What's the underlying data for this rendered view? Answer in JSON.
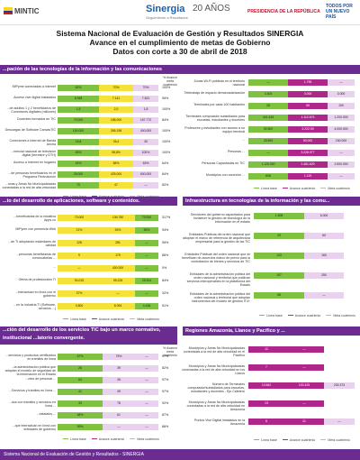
{
  "header": {
    "mintic": "MINTIC",
    "sinergia": "Sinergia",
    "sinergia_sub": "Seguimiento a Resultados",
    "anos": "20 AÑOS",
    "presidencia": "PRESIDENCIA DE LA REPÚBLICA",
    "todos": "TODOS POR UN NUEVO PAÍS"
  },
  "title": {
    "line1": "Sistema Nacional de Evaluación de Gestión y Resultados SINERGIA",
    "line2": "Avance en el cumplimiento de metas de Gobierno",
    "line3": "Datos con corte a 30 de abril de 2018"
  },
  "colors": {
    "accent": "#6a2c91",
    "linea_base": "#7fc241",
    "avance": "#f4e13a",
    "meta": "#b0278c"
  },
  "legend": {
    "base": "Línea base",
    "avance": "Avance cuatrienio",
    "meta": "Meta cuatrienio"
  },
  "col_header": "% Avance meta cuatrienio",
  "sections": {
    "s1": "...pación de las tecnologías de la información y las comunicaciones",
    "s2": "...to del desarrollo de aplicaciones, software y contenidos.",
    "s3": "Infraestructura en tecnologías de la información y las comu...",
    "s4": "...ción del desarrollo de los servicios TIC bajo un marco normativo, institucional ...latorio convergente.",
    "s5": "Regiones Amazonía, Llanos y Pacífico y ..."
  },
  "left1": [
    {
      "label": "MiPyme conectadas a internet",
      "v": [
        "62%",
        "70%",
        "70%"
      ],
      "pct": "100%"
    },
    {
      "label": "Acceso vive digital instalados",
      "v": [
        "6.948",
        "7.141",
        "7.621"
      ],
      "pct": "95%"
    },
    {
      "label": "...de adultos 1 y 2 beneficiarios de Conexiones digitales (millones)",
      "v": [
        "1,5",
        "2,0",
        "1,8"
      ],
      "pct": "100%"
    },
    {
      "label": "Docentes formados en TIC",
      "v": [
        "70.000",
        "188.000",
        "157.772"
      ],
      "pct": "84%"
    },
    {
      "label": "Descargas de Software CanvasTIC",
      "v": [
        "100.000",
        "265.198",
        "400.000"
      ],
      "pct": "100%"
    },
    {
      "label": "Conexiones a Internet de Banda Ancha",
      "v": [
        "15,8",
        "26,4",
        "30"
      ],
      "pct": "100%"
    },
    {
      "label": "...mercial nacional de televisión digital (terrestre y DTH)",
      "v": [
        "63%",
        "98,8%",
        "100%"
      ],
      "pct": "100%"
    },
    {
      "label": "Acceso a Internet en hogares",
      "v": [
        "44%",
        "58%",
        "63%"
      ],
      "pct": "64%"
    },
    {
      "label": "...de personas beneficiarios en el Programa Redvolución",
      "v": [
        "25.000",
        "425.000",
        "600.000"
      ],
      "pct": "84%"
    },
    {
      "label": "...onas y Áreas No Municipalizadas conectadas a la red de alta velocidad",
      "v": [
        "70",
        "47",
        "—"
      ],
      "pct": "82%"
    }
  ],
  "right1": [
    {
      "label": "Zonas Wi-Fi públicas en el territorio nacional",
      "v": [
        "—",
        "1.795",
        "—"
      ],
      "pct": ""
    },
    {
      "label": "Teletrabajo de espacio demarcadarización",
      "v": [
        "3.303",
        "3.000",
        "3.000"
      ],
      "pct": ""
    },
    {
      "label": "Terminales por cada 100 habitantes",
      "v": [
        "28",
        "55",
        "100"
      ],
      "pct": ""
    },
    {
      "label": "Terminales computador subsidiados para escuelas, estudiantes y docentes",
      "v": [
        "441.445",
        "1.112.673",
        "1.200.000"
      ],
      "pct": ""
    },
    {
      "label": "Profesores y estudiantes con acceso a un equipo terminal",
      "v": [
        "92.502",
        "3.222.90",
        "4.000.000"
      ],
      "pct": ""
    },
    {
      "label": "...",
      "v": [
        "33.553",
        "50.000",
        "150.000"
      ],
      "pct": ""
    },
    {
      "label": "Personas ...",
      "v": [
        "—",
        "3.228.077",
        "—"
      ],
      "pct": ""
    },
    {
      "label": "Personas Capacitadas en TIC",
      "v": [
        "1.125.000",
        "2.481.629",
        "2.500.000"
      ],
      "pct": ""
    },
    {
      "label": "Municipios con conexión ...",
      "v": [
        "808",
        "1.119",
        "—"
      ],
      "pct": ""
    }
  ],
  "left2": [
    {
      "label": "...beneficiarias de la iniciativa Apps.co",
      "v": [
        "70.000",
        "136.780",
        "70.000"
      ],
      "pct": "317%"
    },
    {
      "label": "MiPyme con presencia Web",
      "v": [
        "21%",
        "53%",
        "56%"
      ],
      "pct": "94%"
    },
    {
      "label": "...de TI adoptando estándares de calidad",
      "v": [
        "128",
        "281",
        "—"
      ],
      "pct": "95%"
    },
    {
      "label": "...personas beneficiarias de convocatorias ...",
      "v": [
        "9",
        "179",
        "—"
      ],
      "pct": "86%"
    },
    {
      "label": "...",
      "v": [
        "—",
        "400.000",
        "—"
      ],
      "pct": "0%"
    },
    {
      "label": "Oferta de profesionales TI",
      "v": [
        "94.015",
        "95.228",
        "25.924"
      ],
      "pct": "84%"
    },
    {
      "label": "...interactúan en línea con el gobierno",
      "v": [
        "37%",
        "—",
        "—"
      ],
      "pct": "32%"
    },
    {
      "label": "...en la industria TI (Software, servicios ...)",
      "v": [
        "3.800",
        "8.094",
        "4.436"
      ],
      "pct": "51%"
    }
  ],
  "right2": [
    {
      "label": "Servidores del gobierno capacitados para fortalecer la gestión de tecnología de la información en el estado",
      "v": [
        "1.508",
        "6.000"
      ],
      "pct": ""
    },
    {
      "label": "Entidades Públicas del orden nacional que adoptan el marco de referencia de arquitectura empresarial para la gestión de las TIC",
      "v": [
        "33",
        "60"
      ],
      "pct": ""
    },
    {
      "label": "Entidades Públicas del orden nacional que se benefician de acuerdos marco de precio para la contratación de bienes y servicios de TIC",
      "v": [
        "133",
        "160"
      ],
      "pct": ""
    },
    {
      "label": "Entidades de la administración pública del orden nacional y territorial que publican servicios interoperables en la plataforma del Estado",
      "v": [
        "197",
        "250"
      ],
      "pct": ""
    },
    {
      "label": "Entidades de la administración pública del orden nacional y territorial que adoptan instrumentos del modelo de gestión IT4+",
      "v": [
        "68",
        "—"
      ],
      "pct": ""
    }
  ],
  "left3": [
    {
      "label": "...servicios y productos certificados en trámites de línea",
      "v": [
        "67%",
        "75%",
        "—"
      ],
      "pct": "97%"
    },
    {
      "label": "...la administración pública que adoptan el modelo de seguridad de la información en el Estado",
      "v": [
        "26",
        "39",
        "—"
      ],
      "pct": "82%"
    },
    {
      "label": "...ntes de personal ... ",
      "v": [
        "64",
        "26",
        "—"
      ],
      "pct": "97%"
    },
    {
      "label": "...Servicios y trámites en línea ...",
      "v": [
        "41",
        "49",
        "—"
      ],
      "pct": "97%"
    },
    {
      "label": "...dos con trámites y servicios en línea ...",
      "v": [
        "33",
        "78",
        "—"
      ],
      "pct": "92%"
    },
    {
      "label": "...estatales ...",
      "v": [
        "68%",
        "61",
        "—"
      ],
      "pct": "87%"
    },
    {
      "label": "...que interactúan en línea con entidades de gobierno",
      "v": [
        "59%",
        "—",
        "—"
      ],
      "pct": "86%"
    }
  ],
  "right3": [
    {
      "label": "Municipios y Áreas No Municipalizadas conectadas a la red de alta velocidad en el Pacífico",
      "v": [
        "12",
        "—"
      ],
      "pct": ""
    },
    {
      "label": "Municipios y Áreas No Municipalizadas conectadas a la red de alta velocidad en los Llanos",
      "v": [
        "7",
        "—"
      ],
      "pct": ""
    },
    {
      "label": "Número de Terminales computador/subsidiados para escuelas, estudiantes y docentes - Eje Cafetero",
      "v": [
        "10.562",
        "193.425",
        "230.373"
      ],
      "pct": ""
    },
    {
      "label": "Municipios y Áreas No Municipalizadas conectadas a la red de alta velocidad en Amazonía",
      "v": [
        "23",
        "—"
      ],
      "pct": ""
    },
    {
      "label": "Puntos Vive Digital instalados en la Amazonía",
      "v": [
        "8",
        "21",
        "—"
      ],
      "pct": ""
    }
  ],
  "footer": "Sistema Nacional de Evaluación de Gestión y Resultados - SINERGIA"
}
